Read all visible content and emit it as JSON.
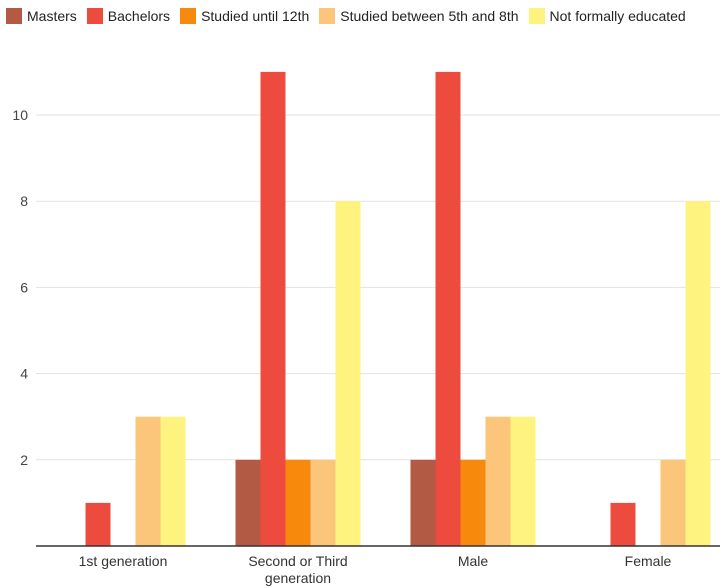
{
  "chart_data": {
    "type": "bar",
    "title": "",
    "xlabel": "",
    "ylabel": "",
    "categories": [
      "1st generation",
      "Second or Third generation",
      "Male",
      "Female"
    ],
    "series": [
      {
        "name": "Masters",
        "color": "#B35A44",
        "values": [
          0,
          2,
          2,
          0
        ]
      },
      {
        "name": "Bachelors",
        "color": "#EE4B3F",
        "values": [
          1,
          11,
          11,
          1
        ]
      },
      {
        "name": "Studied until 12th",
        "color": "#F7890C",
        "values": [
          0,
          2,
          2,
          0
        ]
      },
      {
        "name": "Studied between 5th and 8th",
        "color": "#FBC67A",
        "values": [
          3,
          2,
          3,
          2
        ]
      },
      {
        "name": "Not formally educated",
        "color": "#FEF37E",
        "values": [
          3,
          8,
          3,
          8
        ]
      }
    ],
    "ylim": [
      0,
      11
    ],
    "yticks": [
      2,
      4,
      6,
      8,
      10
    ],
    "grid": true,
    "legend_position": "top-left"
  }
}
